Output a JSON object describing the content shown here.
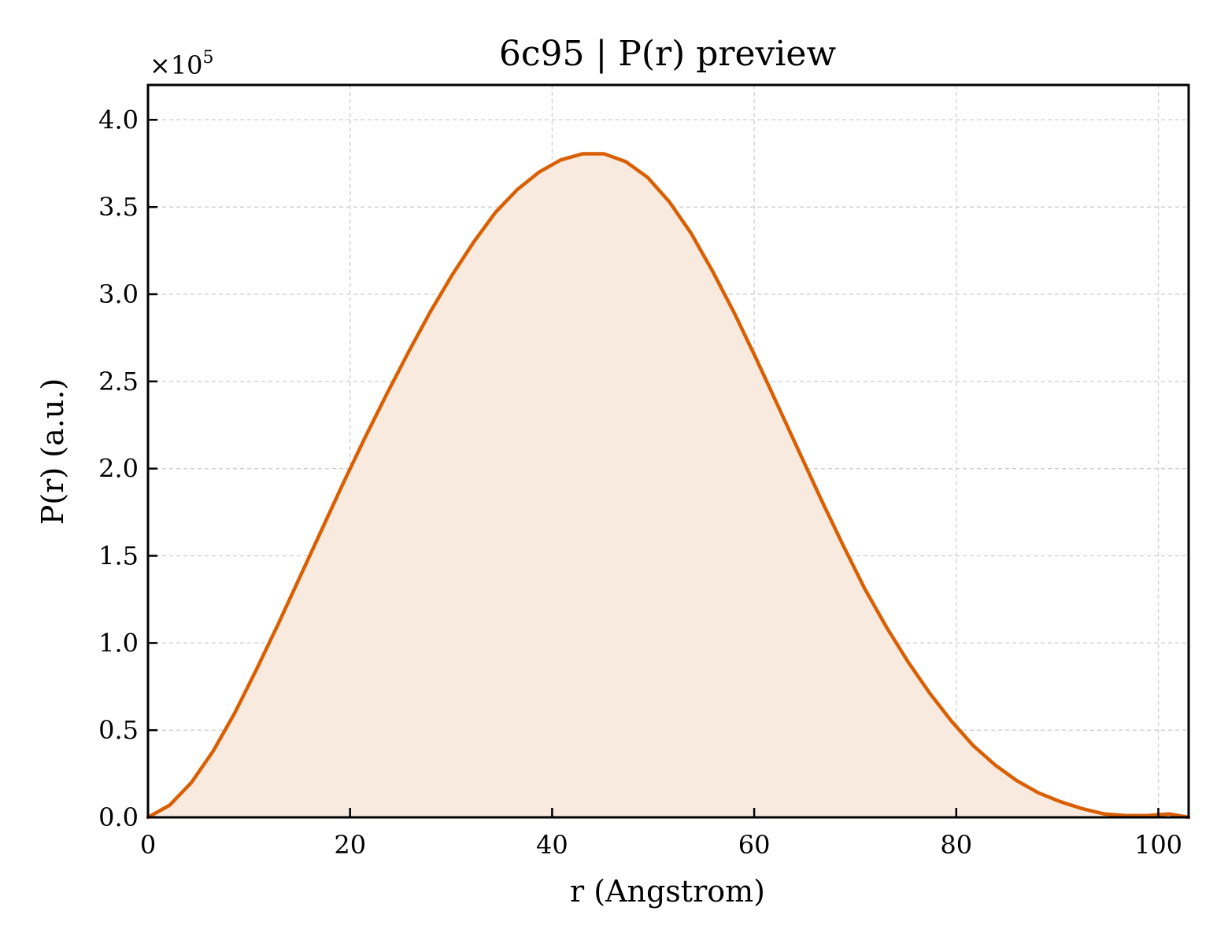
{
  "chart_data": {
    "type": "area",
    "title": "6c95 | P(r) preview",
    "xlabel": "r (Angstrom)",
    "ylabel": "P(r) (a.u.)",
    "y_offset_label": "×10",
    "y_offset_exponent": "5",
    "xlim": [
      0,
      103
    ],
    "ylim": [
      0,
      4.2
    ],
    "y_scale_factor": 100000,
    "xticks": [
      0,
      20,
      40,
      60,
      80,
      100
    ],
    "xtick_labels": [
      "0",
      "20",
      "40",
      "60",
      "80",
      "100"
    ],
    "yticks": [
      0,
      0.5,
      1.0,
      1.5,
      2.0,
      2.5,
      3.0,
      3.5,
      4.0
    ],
    "ytick_labels": [
      "0.0",
      "0.5",
      "1.0",
      "1.5",
      "2.0",
      "2.5",
      "3.0",
      "3.5",
      "4.0"
    ],
    "grid": true,
    "line_color": "#d95f02",
    "fill_color": "#f8eadf",
    "series": [
      {
        "x": [
          0,
          2.15,
          4.3,
          6.45,
          8.6,
          10.75,
          12.9,
          15.05,
          17.2,
          19.35,
          21.5,
          23.65,
          25.8,
          27.95,
          30.1,
          32.25,
          34.4,
          36.55,
          38.7,
          40.85,
          43.0,
          45.15,
          47.3,
          49.45,
          51.6,
          53.75,
          55.9,
          58.05,
          60.2,
          62.35,
          64.5,
          66.65,
          68.8,
          70.95,
          73.1,
          75.25,
          77.4,
          79.55,
          81.7,
          83.85,
          86.0,
          88.15,
          90.3,
          92.45,
          94.6,
          96.75,
          98.9,
          101.05,
          103.0
        ],
        "y": [
          0.0,
          0.07,
          0.2,
          0.38,
          0.6,
          0.85,
          1.11,
          1.38,
          1.65,
          1.92,
          2.18,
          2.43,
          2.67,
          2.9,
          3.11,
          3.3,
          3.47,
          3.6,
          3.7,
          3.77,
          3.805,
          3.805,
          3.76,
          3.67,
          3.53,
          3.35,
          3.13,
          2.89,
          2.63,
          2.36,
          2.09,
          1.82,
          1.56,
          1.31,
          1.09,
          0.89,
          0.71,
          0.55,
          0.41,
          0.3,
          0.21,
          0.14,
          0.09,
          0.05,
          0.02,
          0.01,
          0.01,
          0.02,
          0.0
        ]
      }
    ]
  }
}
